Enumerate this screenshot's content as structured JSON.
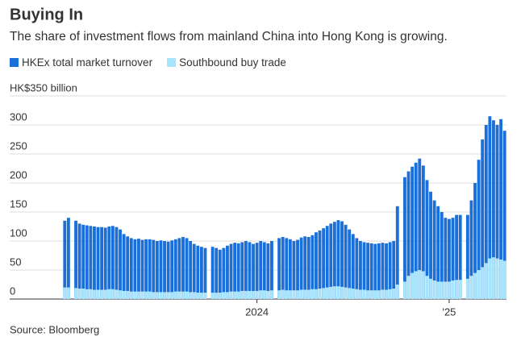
{
  "chart_data": {
    "type": "bar",
    "title": "Buying In",
    "subtitle": "The share of investment flows from mainland China into Hong Kong is growing.",
    "source": "Source: Bloomberg",
    "categories": [
      null,
      null,
      null,
      null,
      null,
      null,
      null,
      null,
      null,
      null,
      null,
      null,
      null,
      null,
      null,
      null,
      null,
      null,
      null,
      null,
      null,
      null,
      null,
      null,
      null,
      null,
      null,
      null,
      null,
      null,
      null,
      null,
      null,
      null,
      null,
      null,
      null,
      null,
      null,
      null,
      null,
      null,
      null,
      null,
      null,
      null,
      null,
      null,
      null,
      null,
      null,
      null,
      "2024",
      null,
      null,
      null,
      null,
      null,
      null,
      null,
      null,
      null,
      null,
      null,
      null,
      null,
      null,
      null,
      null,
      null,
      null,
      null,
      null,
      null,
      null,
      null,
      null,
      null,
      null,
      null,
      null,
      null,
      null,
      null,
      null,
      null,
      null,
      null,
      null,
      null,
      null,
      null,
      null,
      null,
      null,
      null,
      null,
      null,
      null,
      null,
      null,
      null,
      null,
      null,
      "'25",
      null,
      null,
      null,
      null,
      null,
      null,
      null,
      null,
      null,
      null,
      null,
      null,
      null,
      null,
      null
    ],
    "series": [
      {
        "name": "HKEx total market turnover",
        "color": "#1b6fd8",
        "values": [
          135,
          140,
          null,
          135,
          130,
          128,
          127,
          126,
          125,
          124,
          124,
          123,
          125,
          126,
          124,
          120,
          112,
          108,
          105,
          103,
          104,
          102,
          103,
          103,
          102,
          100,
          101,
          100,
          99,
          101,
          103,
          105,
          107,
          105,
          100,
          95,
          92,
          90,
          88,
          null,
          90,
          88,
          85,
          88,
          92,
          95,
          97,
          96,
          98,
          100,
          98,
          95,
          97,
          100,
          98,
          96,
          100,
          null,
          105,
          107,
          105,
          103,
          100,
          102,
          106,
          108,
          107,
          110,
          115,
          118,
          122,
          126,
          130,
          133,
          136,
          134,
          128,
          120,
          112,
          105,
          100,
          98,
          97,
          96,
          95,
          96,
          97,
          96,
          98,
          100,
          160,
          null,
          210,
          220,
          228,
          235,
          242,
          230,
          205,
          185,
          170,
          160,
          150,
          140,
          138,
          140,
          145,
          145,
          null,
          145,
          170,
          200,
          240,
          275,
          300,
          315,
          308,
          300,
          310,
          290
        ]
      },
      {
        "name": "Southbound buy trade",
        "color": "#a8e4fb",
        "values": [
          20,
          20,
          null,
          19,
          18,
          18,
          17,
          17,
          16,
          16,
          16,
          16,
          17,
          17,
          16,
          15,
          14,
          14,
          13,
          13,
          13,
          13,
          13,
          13,
          12,
          12,
          12,
          12,
          12,
          12,
          13,
          13,
          13,
          13,
          12,
          12,
          11,
          11,
          11,
          null,
          11,
          11,
          11,
          12,
          12,
          13,
          13,
          13,
          14,
          14,
          14,
          14,
          14,
          15,
          15,
          14,
          15,
          null,
          15,
          16,
          15,
          15,
          15,
          15,
          16,
          16,
          16,
          17,
          17,
          18,
          19,
          20,
          21,
          22,
          22,
          21,
          20,
          19,
          18,
          17,
          16,
          16,
          15,
          15,
          15,
          15,
          16,
          16,
          17,
          18,
          25,
          null,
          30,
          40,
          45,
          48,
          50,
          48,
          40,
          35,
          32,
          30,
          30,
          30,
          30,
          32,
          33,
          33,
          null,
          35,
          40,
          45,
          50,
          55,
          62,
          70,
          72,
          70,
          68,
          66
        ]
      }
    ],
    "ylim": [
      0,
      350
    ],
    "yticks": [
      0,
      50,
      100,
      150,
      200,
      250,
      300,
      {
        "value": 350,
        "label": "HK$350 billion"
      }
    ],
    "grid": true
  }
}
